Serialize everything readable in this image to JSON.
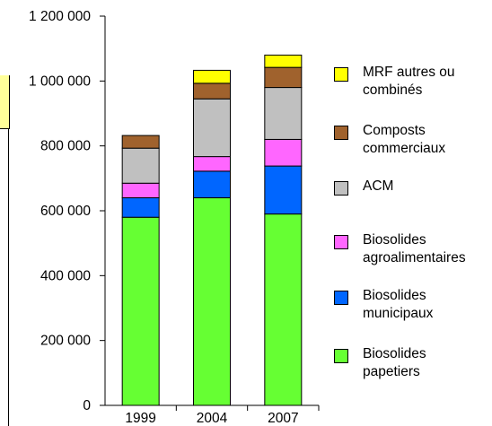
{
  "chart_data": {
    "type": "bar",
    "stacked": true,
    "categories": [
      "1999",
      "2004",
      "2007"
    ],
    "series": [
      {
        "name": "Biosolides papetiers",
        "color": "#66ff33",
        "values": [
          580000,
          640000,
          590000
        ]
      },
      {
        "name": "Biosolides municipaux",
        "color": "#0066ff",
        "values": [
          60000,
          82000,
          148000
        ]
      },
      {
        "name": "Biosolides agroalimentaires",
        "color": "#ff66ff",
        "values": [
          45000,
          45000,
          82000
        ]
      },
      {
        "name": "ACM",
        "color": "#c0c0c0",
        "values": [
          108000,
          178000,
          160000
        ]
      },
      {
        "name": "Composts commerciaux",
        "color": "#a0622d",
        "values": [
          39000,
          48000,
          62000
        ]
      },
      {
        "name": "MRF autres ou combinés",
        "color": "#ffff00",
        "values": [
          0,
          40000,
          38000
        ]
      }
    ],
    "yticks": [
      "0",
      "200 000",
      "400 000",
      "600 000",
      "800 000",
      "1 000 000",
      "1 200 000"
    ],
    "ylim": [
      0,
      1200000
    ],
    "legend_position": "right"
  },
  "legend": [
    {
      "label": "MRF autres ou\ncombinés",
      "color": "#ffff00"
    },
    {
      "label": "Composts\ncommerciaux",
      "color": "#a0622d"
    },
    {
      "label": "ACM",
      "color": "#c0c0c0"
    },
    {
      "label": "Biosolides\nagroalimentaires",
      "color": "#ff66ff"
    },
    {
      "label": "Biosolides\nmunicipaux",
      "color": "#0066ff"
    },
    {
      "label": "Biosolides\npapetiers",
      "color": "#66ff33"
    }
  ]
}
